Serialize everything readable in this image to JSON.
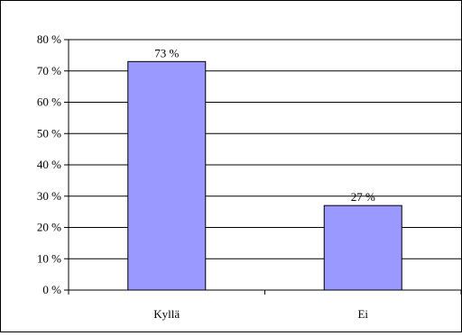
{
  "chart_data": {
    "type": "bar",
    "categories": [
      "Kyllä",
      "Ei"
    ],
    "values": [
      73,
      27
    ],
    "data_labels": [
      "73 %",
      "27 %"
    ],
    "ylim": [
      0,
      80
    ],
    "yticks": [
      0,
      10,
      20,
      30,
      40,
      50,
      60,
      70,
      80
    ],
    "ytick_labels": [
      "0 %",
      "10 %",
      "20 %",
      "30 %",
      "40 %",
      "50 %",
      "60 %",
      "70 %",
      "80 %"
    ],
    "title": "",
    "xlabel": "",
    "ylabel": "",
    "grid": true,
    "legend": "none",
    "bar_color": "#9999ff",
    "bar_edge_color": "#000000",
    "grid_color": "#000000"
  }
}
